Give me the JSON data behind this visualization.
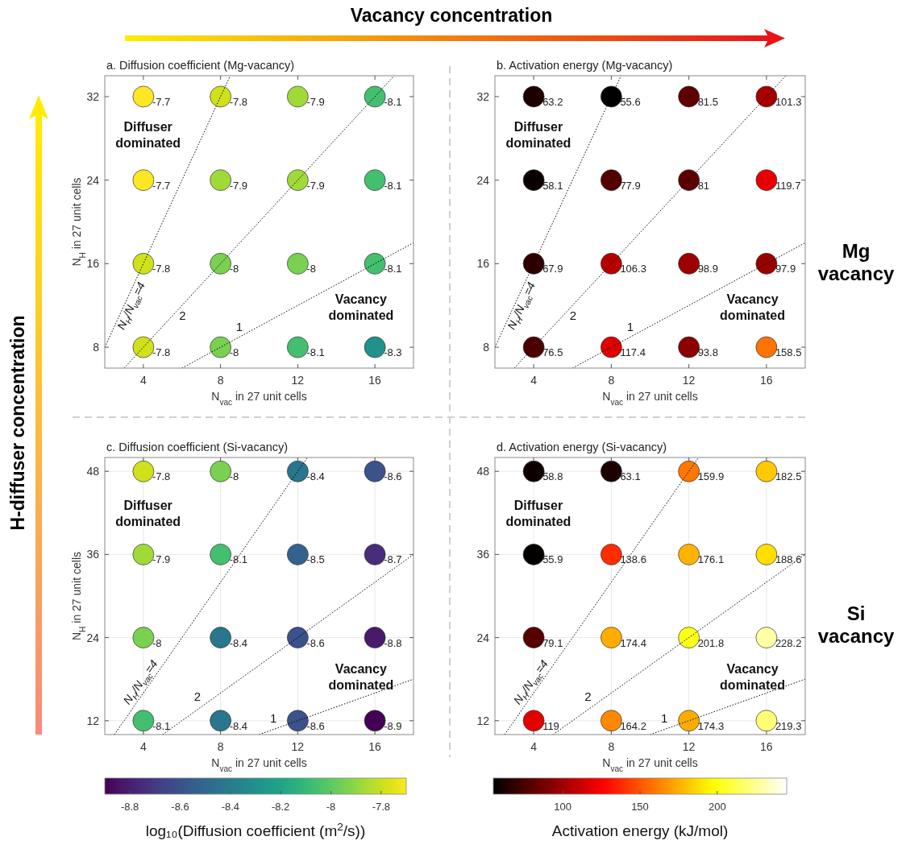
{
  "chart_data": [
    {
      "type": "scatter",
      "title": "a. Diffusion coefficient (Mg-vacancy)",
      "xlabel": "N$_{vac}$ in 27 unit cells",
      "ylabel": "N$_{H}$ in 27 unit cells",
      "xlim": [
        2,
        18
      ],
      "ylim": [
        6,
        34
      ],
      "xticks": [
        4,
        8,
        12,
        16
      ],
      "yticks": [
        8,
        16,
        24,
        32
      ],
      "annotations": [
        "Diffuser dominated",
        "Vacancy dominated",
        "N$_{H}$/N$_{vac}$=4",
        "2",
        "1",
        {
          "text": "-7.7",
          "x": 4,
          "y": 32
        },
        {
          "text": "-7.8",
          "x": 8,
          "y": 32
        },
        {
          "text": "-7.9",
          "x": 12,
          "y": 32
        },
        {
          "text": "-8.1",
          "x": 16,
          "y": 32
        },
        {
          "text": "-7.7",
          "x": 4,
          "y": 24
        },
        {
          "text": "-7.9",
          "x": 8,
          "y": 24
        },
        {
          "text": "-7.9",
          "x": 12,
          "y": 24
        },
        {
          "text": "-8.1",
          "x": 16,
          "y": 24
        },
        {
          "text": "-7.8",
          "x": 4,
          "y": 16
        },
        {
          "text": "-8",
          "x": 8,
          "y": 16
        },
        {
          "text": "-8",
          "x": 12,
          "y": 16
        },
        {
          "text": "-8.1",
          "x": 16,
          "y": 16
        },
        {
          "text": "-7.8",
          "x": 4,
          "y": 8
        },
        {
          "text": "-8",
          "x": 8,
          "y": 8
        },
        {
          "text": "-8.1",
          "x": 12,
          "y": 8
        },
        {
          "text": "-8.3",
          "x": 16,
          "y": 8
        }
      ],
      "series": [
        {
          "type": "scatter",
          "marker": "circle",
          "x": [
            4,
            8,
            12,
            16,
            4,
            8,
            12,
            16,
            4,
            8,
            12,
            16,
            4,
            8,
            12,
            16
          ],
          "values": [
            32,
            32,
            32,
            32,
            24,
            24,
            24,
            24,
            16,
            16,
            16,
            16,
            8,
            8,
            8,
            8
          ],
          "colors": [
            "#fde725",
            "#d0e11c",
            "#a0da39",
            "#44bf70",
            "#fde725",
            "#a0da39",
            "#a0da39",
            "#44bf70",
            "#d0e11c",
            "#7ad151",
            "#7ad151",
            "#44bf70",
            "#d0e11c",
            "#7ad151",
            "#44bf70",
            "#21918c"
          ]
        },
        {
          "type": "line",
          "x": [
            2,
            8.5
          ],
          "values": [
            8,
            34
          ],
          "color": "#000000",
          "line_style": "dotted"
        },
        {
          "type": "line",
          "x": [
            3,
            17
          ],
          "values": [
            6,
            34
          ],
          "color": "#000000",
          "line_style": "dotted"
        },
        {
          "type": "line",
          "x": [
            6,
            18
          ],
          "values": [
            6,
            18
          ],
          "color": "#000000",
          "line_style": "dotted"
        }
      ]
    },
    {
      "type": "scatter",
      "title": "b. Activation energy (Mg-vacancy)",
      "xlabel": "N$_{vac}$ in 27 unit cells",
      "xlim": [
        2,
        18
      ],
      "ylim": [
        6,
        34
      ],
      "xticks": [
        4,
        8,
        12,
        16
      ],
      "yticks": [
        8,
        16,
        24,
        32
      ],
      "annotations": [
        "Diffuser dominated",
        "Vacancy dominated",
        "N$_{H}$/N$_{vac}$=4",
        "2",
        "1",
        {
          "text": "63.2",
          "x": 4,
          "y": 32
        },
        {
          "text": "55.6",
          "x": 8,
          "y": 32
        },
        {
          "text": "81.5",
          "x": 12,
          "y": 32
        },
        {
          "text": "101.3",
          "x": 16,
          "y": 32
        },
        {
          "text": "58.1",
          "x": 4,
          "y": 24
        },
        {
          "text": "77.9",
          "x": 8,
          "y": 24
        },
        {
          "text": "81",
          "x": 12,
          "y": 24
        },
        {
          "text": "119.7",
          "x": 16,
          "y": 24
        },
        {
          "text": "67.9",
          "x": 4,
          "y": 16
        },
        {
          "text": "106.3",
          "x": 8,
          "y": 16
        },
        {
          "text": "98.9",
          "x": 12,
          "y": 16
        },
        {
          "text": "97.9",
          "x": 16,
          "y": 16
        },
        {
          "text": "76.5",
          "x": 4,
          "y": 8
        },
        {
          "text": "117.4",
          "x": 8,
          "y": 8
        },
        {
          "text": "93.8",
          "x": 12,
          "y": 8
        },
        {
          "text": "158.5",
          "x": 16,
          "y": 8
        }
      ],
      "series": [
        {
          "type": "scatter",
          "marker": "circle",
          "x": [
            4,
            8,
            12,
            16,
            4,
            8,
            12,
            16,
            4,
            8,
            12,
            16,
            4,
            8,
            12,
            16
          ],
          "values": [
            32,
            32,
            32,
            32,
            24,
            24,
            24,
            24,
            16,
            16,
            16,
            16,
            8,
            8,
            8,
            8
          ],
          "colors": [
            "#1d0000",
            "#020000",
            "#5f0000",
            "#a60000",
            "#0b0000",
            "#520000",
            "#5d0000",
            "#e80000",
            "#2e0000",
            "#b80000",
            "#9d0000",
            "#990000",
            "#4d0000",
            "#df0000",
            "#8b0000",
            "#ff7300"
          ]
        },
        {
          "type": "line",
          "x": [
            2,
            8.5
          ],
          "values": [
            8,
            34
          ],
          "color": "#000000",
          "line_style": "dotted"
        },
        {
          "type": "line",
          "x": [
            3,
            17
          ],
          "values": [
            6,
            34
          ],
          "color": "#000000",
          "line_style": "dotted"
        },
        {
          "type": "line",
          "x": [
            6,
            18
          ],
          "values": [
            6,
            18
          ],
          "color": "#000000",
          "line_style": "dotted"
        }
      ]
    },
    {
      "type": "scatter",
      "title": "c. Diffusion coefficient (Si-vacancy)",
      "xlabel": "N$_{vac}$ in 27 unit cells",
      "ylabel": "N$_{H}$ in 27 unit cells",
      "xlim": [
        2,
        18
      ],
      "ylim": [
        10,
        50
      ],
      "xticks": [
        4,
        8,
        12,
        16
      ],
      "yticks": [
        12,
        24,
        36,
        48
      ],
      "grid": true,
      "clim": [
        -8.9,
        -7.7
      ],
      "cticks": [
        -8.8,
        -8.6,
        -8.4,
        -8.2,
        -8,
        -7.8
      ],
      "clabel": "log₁₀(Diffusion coefficient (m$^{2}$/s))",
      "annotations": [
        "Diffuser dominated",
        "Vacancy dominated",
        "N$_{H}$/N$_{vac}$=4",
        "2",
        "1",
        {
          "text": "-7.8",
          "x": 4,
          "y": 48
        },
        {
          "text": "-8",
          "x": 8,
          "y": 48
        },
        {
          "text": "-8.4",
          "x": 12,
          "y": 48
        },
        {
          "text": "-8.6",
          "x": 16,
          "y": 48
        },
        {
          "text": "-7.9",
          "x": 4,
          "y": 36
        },
        {
          "text": "-8.1",
          "x": 8,
          "y": 36
        },
        {
          "text": "-8.5",
          "x": 12,
          "y": 36
        },
        {
          "text": "-8.7",
          "x": 16,
          "y": 36
        },
        {
          "text": "-8",
          "x": 4,
          "y": 24
        },
        {
          "text": "-8.4",
          "x": 8,
          "y": 24
        },
        {
          "text": "-8.6",
          "x": 12,
          "y": 24
        },
        {
          "text": "-8.8",
          "x": 16,
          "y": 24
        },
        {
          "text": "-8.1",
          "x": 4,
          "y": 12
        },
        {
          "text": "-8.4",
          "x": 8,
          "y": 12
        },
        {
          "text": "-8.6",
          "x": 12,
          "y": 12
        },
        {
          "text": "-8.9",
          "x": 16,
          "y": 12
        }
      ],
      "series": [
        {
          "type": "scatter",
          "marker": "circle",
          "x": [
            4,
            8,
            12,
            16,
            4,
            8,
            12,
            16,
            4,
            8,
            12,
            16,
            4,
            8,
            12,
            16
          ],
          "values": [
            48,
            48,
            48,
            48,
            36,
            36,
            36,
            36,
            24,
            24,
            24,
            24,
            12,
            12,
            12,
            12
          ],
          "colors": [
            "#d0e11c",
            "#7ad151",
            "#2a768e",
            "#3b528b",
            "#a0da39",
            "#44bf70",
            "#33638d",
            "#472d7b",
            "#7ad151",
            "#2a768e",
            "#3b528b",
            "#481a6c",
            "#44bf70",
            "#2a768e",
            "#3b528b",
            "#440154"
          ]
        },
        {
          "type": "line",
          "x": [
            2.5,
            12.5
          ],
          "values": [
            10,
            50
          ],
          "color": "#000000",
          "line_style": "dotted"
        },
        {
          "type": "line",
          "x": [
            5,
            18
          ],
          "values": [
            10,
            36
          ],
          "color": "#000000",
          "line_style": "dotted"
        },
        {
          "type": "line",
          "x": [
            10,
            18
          ],
          "values": [
            10,
            18
          ],
          "color": "#000000",
          "line_style": "dotted"
        }
      ]
    },
    {
      "type": "scatter",
      "title": "d. Activation energy (Si-vacancy)",
      "xlabel": "N$_{vac}$ in 27 unit cells",
      "xlim": [
        2,
        18
      ],
      "ylim": [
        10,
        50
      ],
      "xticks": [
        4,
        8,
        12,
        16
      ],
      "yticks": [
        12,
        24,
        36,
        48
      ],
      "grid": true,
      "clim": [
        55,
        245
      ],
      "cticks": [
        100,
        150,
        200
      ],
      "clabel": "Activation energy (kJ/mol)",
      "annotations": [
        "Diffuser dominated",
        "Vacancy dominated",
        "N$_{H}$/N$_{vac}$=4",
        "2",
        "1",
        {
          "text": "58.8",
          "x": 4,
          "y": 48
        },
        {
          "text": "63.1",
          "x": 8,
          "y": 48
        },
        {
          "text": "159.9",
          "x": 12,
          "y": 48
        },
        {
          "text": "182.5",
          "x": 16,
          "y": 48
        },
        {
          "text": "55.9",
          "x": 4,
          "y": 36
        },
        {
          "text": "138.6",
          "x": 8,
          "y": 36
        },
        {
          "text": "176.1",
          "x": 12,
          "y": 36
        },
        {
          "text": "188.6",
          "x": 16,
          "y": 36
        },
        {
          "text": "79.1",
          "x": 4,
          "y": 24
        },
        {
          "text": "174.4",
          "x": 8,
          "y": 24
        },
        {
          "text": "201.8",
          "x": 12,
          "y": 24
        },
        {
          "text": "228.2",
          "x": 16,
          "y": 24
        },
        {
          "text": "119",
          "x": 4,
          "y": 12
        },
        {
          "text": "164.2",
          "x": 8,
          "y": 12
        },
        {
          "text": "174.3",
          "x": 12,
          "y": 12
        },
        {
          "text": "219.3",
          "x": 16,
          "y": 12
        }
      ],
      "series": [
        {
          "type": "scatter",
          "marker": "circle",
          "x": [
            4,
            8,
            12,
            16,
            4,
            8,
            12,
            16,
            4,
            8,
            12,
            16,
            4,
            8,
            12,
            16
          ],
          "values": [
            48,
            48,
            48,
            48,
            36,
            36,
            36,
            36,
            24,
            24,
            24,
            24,
            12,
            12,
            12,
            12
          ],
          "colors": [
            "#0e0000",
            "#1d0000",
            "#ff7800",
            "#ffc900",
            "#030000",
            "#ff2c00",
            "#ffb200",
            "#ffdf00",
            "#560000",
            "#ffac00",
            "#ffff17",
            "#ffffa5",
            "#e50000",
            "#ff8800",
            "#ffac00",
            "#ffff75"
          ]
        },
        {
          "type": "line",
          "x": [
            2.5,
            12.5
          ],
          "values": [
            10,
            50
          ],
          "color": "#000000",
          "line_style": "dotted"
        },
        {
          "type": "line",
          "x": [
            5,
            18
          ],
          "values": [
            10,
            36
          ],
          "color": "#000000",
          "line_style": "dotted"
        },
        {
          "type": "line",
          "x": [
            10,
            18
          ],
          "values": [
            10,
            18
          ],
          "color": "#000000",
          "line_style": "dotted"
        }
      ]
    },
    {
      "type": "other",
      "annotations": [
        "Vacancy concentration",
        "H-diffuser concentration",
        "Mg vacancy",
        "Si vacancy"
      ]
    }
  ]
}
